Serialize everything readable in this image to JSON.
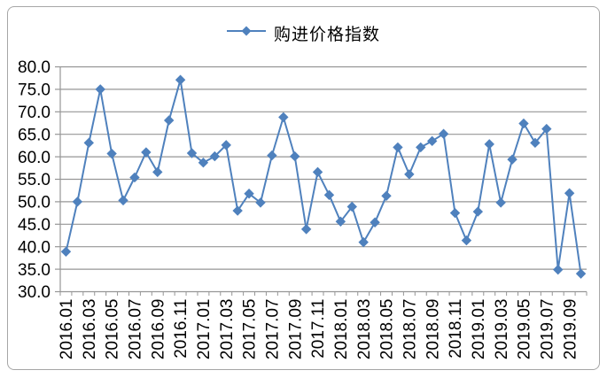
{
  "legend": {
    "label": "购进价格指数"
  },
  "colors": {
    "series": "#4F81BD",
    "gridline": "#969696",
    "axis": "#969696",
    "text": "#000000",
    "frame_border": "#a6a6a6",
    "background": "#ffffff"
  },
  "chart_data": {
    "type": "line",
    "title": "",
    "legend_position": "top-center",
    "marker": "diamond",
    "grid": "horizontal-major",
    "ylim": [
      30,
      80
    ],
    "y_tick_step": 5,
    "y_tick_labels": [
      "30.0",
      "35.0",
      "40.0",
      "45.0",
      "50.0",
      "55.0",
      "60.0",
      "65.0",
      "70.0",
      "75.0",
      "80.0"
    ],
    "x_label_rotation": -90,
    "x_tick_labels_shown": [
      "2016.01",
      "2016.03",
      "2016.05",
      "2016.07",
      "2016.09",
      "2016.11",
      "2017.01",
      "2017.03",
      "2017.05",
      "2017.07",
      "2017.09",
      "2017.11",
      "2018.01",
      "2018.03",
      "2018.05",
      "2018.07",
      "2018.09",
      "2018.11",
      "2019.01",
      "2019.03",
      "2019.05",
      "2019.07",
      "2019.09"
    ],
    "categories": [
      "2016.01",
      "2016.02",
      "2016.03",
      "2016.04",
      "2016.05",
      "2016.06",
      "2016.07",
      "2016.08",
      "2016.09",
      "2016.10",
      "2016.11",
      "2016.12",
      "2017.01",
      "2017.02",
      "2017.03",
      "2017.04",
      "2017.05",
      "2017.06",
      "2017.07",
      "2017.08",
      "2017.09",
      "2017.10",
      "2017.11",
      "2017.12",
      "2018.01",
      "2018.02",
      "2018.03",
      "2018.04",
      "2018.05",
      "2018.06",
      "2018.07",
      "2018.08",
      "2018.09",
      "2018.10",
      "2018.11",
      "2018.12",
      "2019.01",
      "2019.02",
      "2019.03",
      "2019.04",
      "2019.05",
      "2019.06",
      "2019.07",
      "2019.08",
      "2019.09",
      "2019.10"
    ],
    "series": [
      {
        "name": "购进价格指数",
        "color": "#4F81BD",
        "values": [
          38.9,
          50.0,
          63.1,
          75.0,
          60.7,
          50.3,
          55.4,
          61.0,
          56.6,
          68.1,
          77.1,
          60.8,
          58.7,
          60.1,
          62.6,
          48.0,
          51.8,
          49.8,
          60.3,
          68.8,
          60.1,
          43.9,
          56.6,
          51.5,
          45.6,
          48.9,
          41.0,
          45.4,
          51.3,
          62.1,
          56.1,
          62.1,
          63.5,
          65.1,
          47.5,
          41.4,
          47.8,
          62.8,
          49.8,
          59.4,
          67.4,
          63.1,
          66.2,
          34.9,
          51.9,
          34.0
        ]
      }
    ]
  }
}
